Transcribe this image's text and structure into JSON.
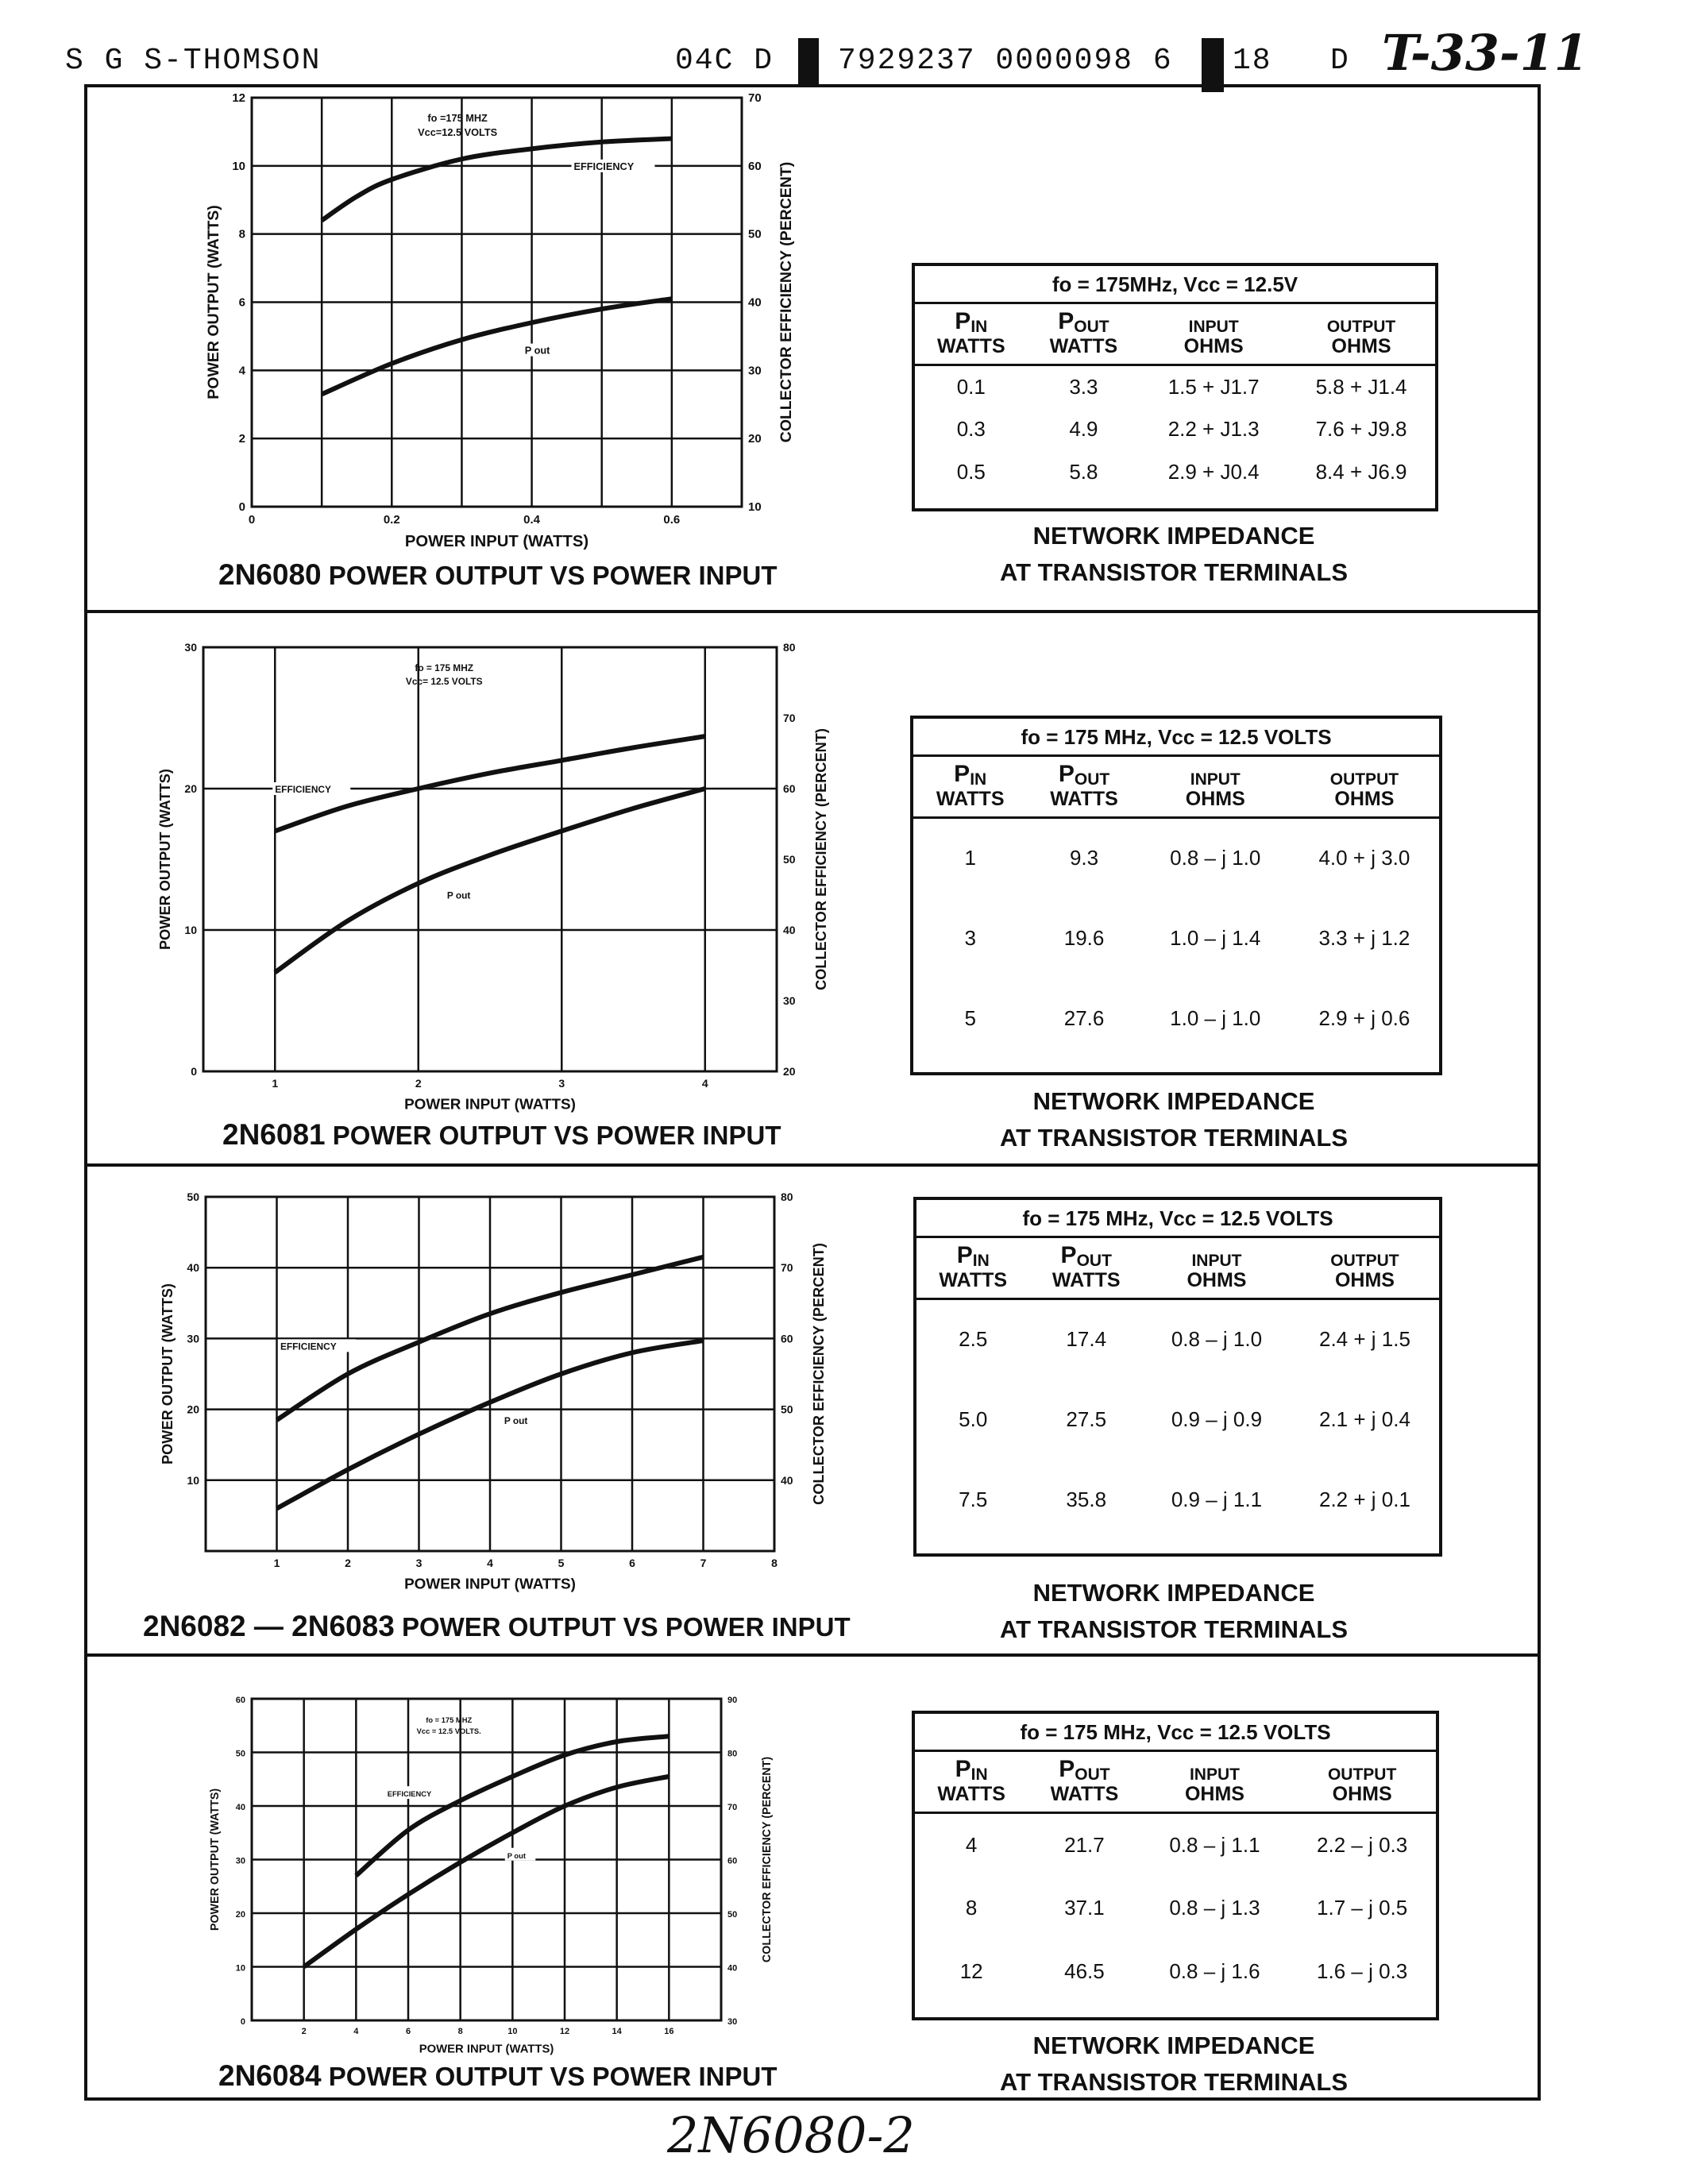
{
  "header": {
    "company": "S G S-THOMSON",
    "code": "04C D",
    "barcode_number": "7929237 0000098 6",
    "page_code": "18",
    "d": "D",
    "handwritten_ref": "T-33-11"
  },
  "footer": {
    "handwritten_page": "2N6080-2"
  },
  "chart_data": [
    {
      "type": "line",
      "title": "2N6080 POWER OUTPUT VS POWER INPUT",
      "title_prefix": "2N6080",
      "title_rest": "POWER OUTPUT VS POWER INPUT",
      "xlabel": "POWER INPUT (WATTS)",
      "ylabel": "POWER OUTPUT (WATTS)",
      "y2label": "COLLECTOR EFFICIENCY (PERCENT)",
      "conditions": [
        "fo =175 MHZ",
        "Vcc=12.5 VOLTS"
      ],
      "xlim": [
        0,
        0.7
      ],
      "ylim": [
        0,
        12
      ],
      "y2lim": [
        10,
        70
      ],
      "grid": true,
      "xticks": [
        0,
        0.1,
        0.2,
        0.3,
        0.4,
        0.5,
        0.6,
        0.7
      ],
      "xtick_labels": [
        "0",
        "",
        "0.2",
        "",
        "0.4",
        "",
        "0.6",
        ""
      ],
      "yticks": [
        0,
        2,
        4,
        6,
        8,
        10,
        12
      ],
      "ytick_labels": [
        "0",
        "2",
        "4",
        "6",
        "8",
        "10",
        "12"
      ],
      "y2ticks": [
        10,
        20,
        30,
        40,
        50,
        60,
        70
      ],
      "y2tick_labels": [
        "10",
        "20",
        "30",
        "40",
        "50",
        "60",
        "70"
      ],
      "series": [
        {
          "name": "EFFICIENCY",
          "axis": "right",
          "x": [
            0.1,
            0.15,
            0.2,
            0.3,
            0.4,
            0.5,
            0.6
          ],
          "y": [
            52,
            55.5,
            58,
            61,
            62.5,
            63.5,
            64
          ],
          "label_at": [
            0.46,
            10
          ]
        },
        {
          "name": "P out",
          "axis": "left",
          "x": [
            0.1,
            0.2,
            0.3,
            0.4,
            0.5,
            0.6
          ],
          "y": [
            3.3,
            4.2,
            4.9,
            5.4,
            5.8,
            6.1
          ],
          "label_at": [
            0.39,
            4.6
          ]
        }
      ]
    },
    {
      "type": "line",
      "title": "2N6081 POWER OUTPUT VS POWER INPUT",
      "title_prefix": "2N6081",
      "title_rest": "POWER OUTPUT VS POWER INPUT",
      "xlabel": "POWER INPUT (WATTS)",
      "ylabel": "POWER OUTPUT (WATTS)",
      "y2label": "COLLECTOR EFFICIENCY (PERCENT)",
      "conditions": [
        "fo = 175 MHZ",
        "Vcc= 12.5 VOLTS"
      ],
      "xlim": [
        0.5,
        4.5
      ],
      "ylim": [
        0,
        30
      ],
      "y2lim": [
        20,
        80
      ],
      "grid": true,
      "xticks": [
        1,
        2,
        3,
        4
      ],
      "xtick_labels": [
        "1",
        "2",
        "3",
        "4"
      ],
      "yticks": [
        0,
        10,
        20,
        30
      ],
      "ytick_labels": [
        "0",
        "10",
        "20",
        "30"
      ],
      "y2ticks": [
        20,
        30,
        40,
        50,
        60,
        70,
        80
      ],
      "y2tick_labels": [
        "20",
        "30",
        "40",
        "50",
        "60",
        "70",
        "80"
      ],
      "series": [
        {
          "name": "EFFICIENCY",
          "axis": "right",
          "x": [
            1,
            1.5,
            2,
            2.5,
            3,
            3.5,
            4
          ],
          "y": [
            54,
            57.5,
            60,
            62.2,
            64,
            65.8,
            67.4
          ],
          "label_at": [
            1,
            20
          ]
        },
        {
          "name": "P out",
          "axis": "left",
          "x": [
            1,
            1.5,
            2,
            2.5,
            3,
            3.5,
            4
          ],
          "y": [
            7,
            10.6,
            13.3,
            15.3,
            17,
            18.6,
            20
          ],
          "label_at": [
            2.2,
            12.5
          ]
        }
      ]
    },
    {
      "type": "line",
      "title": "2N6082 — 2N6083 POWER OUTPUT VS POWER INPUT",
      "title_prefix": "2N6082 — 2N6083",
      "title_rest": "POWER OUTPUT VS POWER INPUT",
      "xlabel": "POWER INPUT (WATTS)",
      "ylabel": "POWER OUTPUT (WATTS)",
      "y2label": "COLLECTOR EFFICIENCY (PERCENT)",
      "conditions": [],
      "xlim": [
        0,
        8
      ],
      "ylim": [
        0,
        50
      ],
      "y2lim": [
        30,
        80
      ],
      "grid": true,
      "xticks": [
        1,
        2,
        3,
        4,
        5,
        6,
        7,
        8
      ],
      "xtick_labels": [
        "1",
        "2",
        "3",
        "4",
        "5",
        "6",
        "7",
        "8"
      ],
      "yticks": [
        10,
        20,
        30,
        40,
        50
      ],
      "ytick_labels": [
        "10",
        "20",
        "30",
        "40",
        "50"
      ],
      "y2ticks": [
        40,
        50,
        60,
        70,
        80
      ],
      "y2tick_labels": [
        "40",
        "50",
        "60",
        "70",
        "80"
      ],
      "series": [
        {
          "name": "EFFICIENCY",
          "axis": "right",
          "x": [
            1,
            2,
            3,
            4,
            5,
            6,
            7
          ],
          "y": [
            48.5,
            55,
            59.5,
            63.5,
            66.5,
            69,
            71.5
          ],
          "label_at": [
            1.05,
            29
          ]
        },
        {
          "name": "P out",
          "axis": "left",
          "x": [
            1,
            2,
            3,
            4,
            5,
            6,
            7
          ],
          "y": [
            6,
            11.5,
            16.5,
            21,
            25,
            28,
            29.7
          ],
          "label_at": [
            4.2,
            18.5
          ]
        }
      ]
    },
    {
      "type": "line",
      "title": "2N6084 POWER OUTPUT VS POWER INPUT",
      "title_prefix": "2N6084",
      "title_rest": "POWER OUTPUT VS POWER INPUT",
      "xlabel": "POWER INPUT (WATTS)",
      "ylabel": "POWER OUTPUT (WATTS)",
      "y2label": "COLLECTOR EFFICIENCY (PERCENT)",
      "conditions": [
        "fo = 175 MHZ",
        "Vcc = 12.5 VOLTS."
      ],
      "xlim": [
        0,
        18
      ],
      "ylim": [
        0,
        60
      ],
      "y2lim": [
        30,
        90
      ],
      "grid": true,
      "xticks": [
        2,
        4,
        6,
        8,
        10,
        12,
        14,
        16
      ],
      "xtick_labels": [
        "2",
        "4",
        "6",
        "8",
        "10",
        "12",
        "14",
        "16"
      ],
      "yticks": [
        0,
        10,
        20,
        30,
        40,
        50,
        60
      ],
      "ytick_labels": [
        "0",
        "10",
        "20",
        "30",
        "40",
        "50",
        "60"
      ],
      "y2ticks": [
        30,
        40,
        50,
        60,
        70,
        80,
        90
      ],
      "y2tick_labels": [
        "30",
        "40",
        "50",
        "60",
        "70",
        "80",
        "90"
      ],
      "series": [
        {
          "name": "EFFICIENCY",
          "axis": "right",
          "x": [
            4,
            6,
            8,
            10,
            12,
            14,
            16
          ],
          "y": [
            57,
            65.5,
            71,
            75.5,
            79.5,
            82,
            83
          ],
          "label_at": [
            5.2,
            42.5
          ]
        },
        {
          "name": "P out",
          "axis": "left",
          "x": [
            2,
            4,
            6,
            8,
            10,
            12,
            14,
            16
          ],
          "y": [
            10,
            17,
            23.5,
            29.5,
            35,
            40,
            43.5,
            45.5
          ],
          "label_at": [
            9.8,
            31
          ]
        }
      ]
    }
  ],
  "tables": [
    {
      "title": "fo = 175MHz, Vcc = 12.5V",
      "headers": [
        [
          "P",
          "IN",
          "WATTS"
        ],
        [
          "P",
          "OUT",
          "WATTS"
        ],
        [
          "",
          "INPUT",
          "OHMS"
        ],
        [
          "",
          "OUTPUT",
          "OHMS"
        ]
      ],
      "rows": [
        [
          "0.1",
          "3.3",
          "1.5 + J1.7",
          "5.8 + J1.4"
        ],
        [
          "0.3",
          "4.9",
          "2.2 + J1.3",
          "7.6 + J9.8"
        ],
        [
          "0.5",
          "5.8",
          "2.9 + J0.4",
          "8.4 + J6.9"
        ]
      ],
      "caption": [
        "NETWORK IMPEDANCE",
        "AT TRANSISTOR TERMINALS"
      ]
    },
    {
      "title": "fo = 175 MHz, Vcc = 12.5 VOLTS",
      "headers": [
        [
          "P",
          "IN",
          "WATTS"
        ],
        [
          "P",
          "OUT",
          "WATTS"
        ],
        [
          "",
          "INPUT",
          "OHMS"
        ],
        [
          "",
          "OUTPUT",
          "OHMS"
        ]
      ],
      "rows": [
        [
          "1",
          "9.3",
          "0.8 – j 1.0",
          "4.0 + j 3.0"
        ],
        [
          "3",
          "19.6",
          "1.0 – j 1.4",
          "3.3 + j 1.2"
        ],
        [
          "5",
          "27.6",
          "1.0 – j 1.0",
          "2.9 + j 0.6"
        ]
      ],
      "caption": [
        "NETWORK IMPEDANCE",
        "AT TRANSISTOR TERMINALS"
      ]
    },
    {
      "title": "fo = 175 MHz, Vcc = 12.5 VOLTS",
      "headers": [
        [
          "P",
          "IN",
          "WATTS"
        ],
        [
          "P",
          "OUT",
          "WATTS"
        ],
        [
          "",
          "INPUT",
          "OHMS"
        ],
        [
          "",
          "OUTPUT",
          "OHMS"
        ]
      ],
      "rows": [
        [
          "2.5",
          "17.4",
          "0.8 – j 1.0",
          "2.4 + j 1.5"
        ],
        [
          "5.0",
          "27.5",
          "0.9 – j 0.9",
          "2.1 + j 0.4"
        ],
        [
          "7.5",
          "35.8",
          "0.9 – j 1.1",
          "2.2 + j 0.1"
        ]
      ],
      "caption": [
        "NETWORK IMPEDANCE",
        "AT TRANSISTOR TERMINALS"
      ]
    },
    {
      "title": "fo = 175 MHz, Vcc = 12.5 VOLTS",
      "headers": [
        [
          "P",
          "IN",
          "WATTS"
        ],
        [
          "P",
          "OUT",
          "WATTS"
        ],
        [
          "",
          "INPUT",
          "OHMS"
        ],
        [
          "",
          "OUTPUT",
          "OHMS"
        ]
      ],
      "rows": [
        [
          "4",
          "21.7",
          "0.8 – j 1.1",
          "2.2 – j 0.3"
        ],
        [
          "8",
          "37.1",
          "0.8 – j 1.3",
          "1.7 – j 0.5"
        ],
        [
          "12",
          "46.5",
          "0.8 – j 1.6",
          "1.6 – j 0.3"
        ]
      ],
      "caption": [
        "NETWORK IMPEDANCE",
        "AT TRANSISTOR TERMINALS"
      ]
    }
  ]
}
